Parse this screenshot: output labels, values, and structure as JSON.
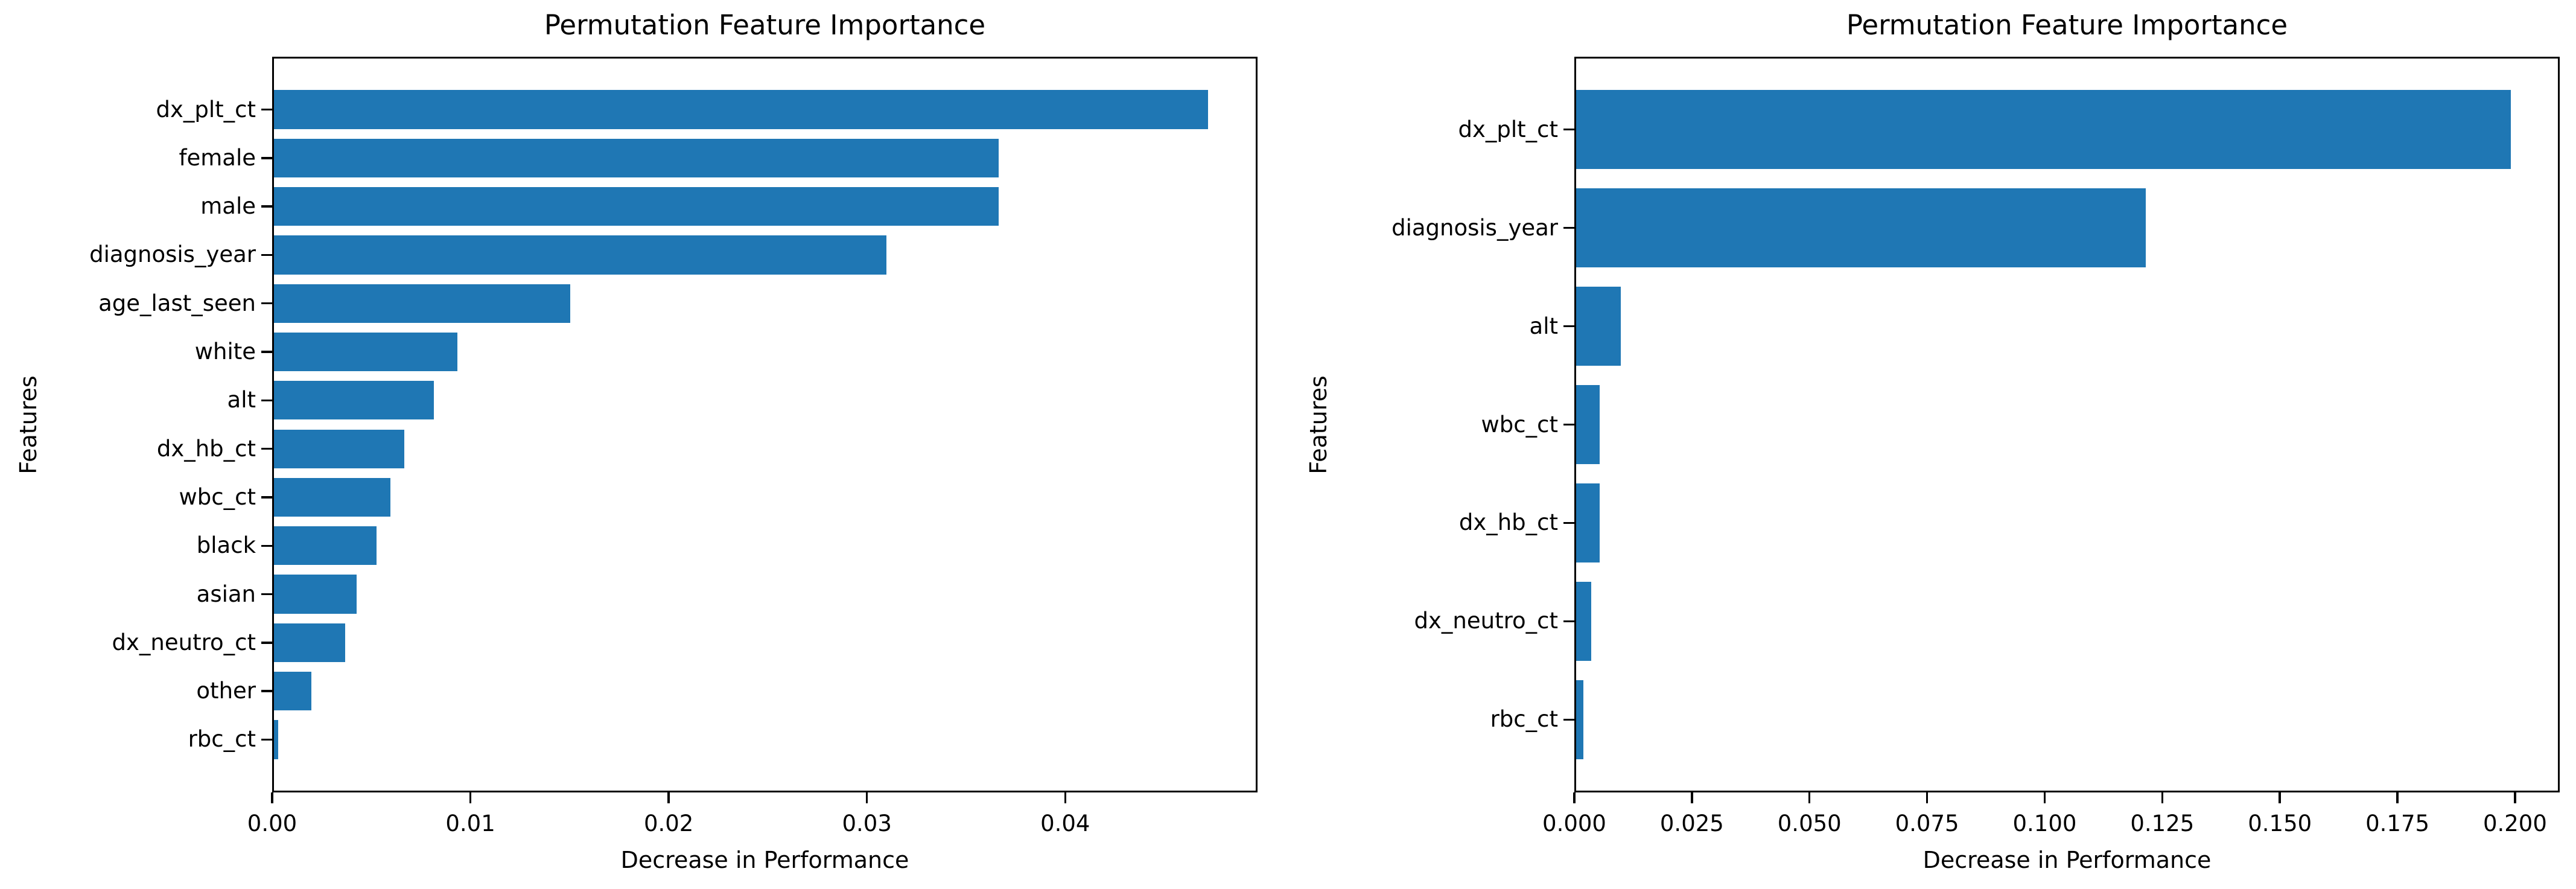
{
  "figure": {
    "background": "#ffffff",
    "text_color": "#000000"
  },
  "chart_data": [
    {
      "type": "bar",
      "orientation": "horizontal",
      "title": "Permutation Feature Importance",
      "xlabel": "Decrease in Performance",
      "ylabel": "Features",
      "bar_color": "#1f77b4",
      "axis_color": "#000000",
      "grid": false,
      "legend": false,
      "categories": [
        "dx_plt_ct",
        "female",
        "male",
        "diagnosis_year",
        "age_last_seen",
        "white",
        "alt",
        "dx_hb_ct",
        "wbc_ct",
        "black",
        "asian",
        "dx_neutro_ct",
        "other",
        "rbc_ct"
      ],
      "values": [
        0.0473,
        0.0367,
        0.0367,
        0.031,
        0.015,
        0.0093,
        0.0081,
        0.0066,
        0.0059,
        0.0052,
        0.0042,
        0.0036,
        0.0019,
        0.0002
      ],
      "xlim": [
        0,
        0.0497
      ],
      "xticks": [
        0,
        0.01,
        0.02,
        0.03,
        0.04
      ],
      "xtick_labels": [
        "0.00",
        "0.01",
        "0.02",
        "0.03",
        "0.04"
      ]
    },
    {
      "type": "bar",
      "orientation": "horizontal",
      "title": "Permutation Feature Importance",
      "xlabel": "Decrease in Performance",
      "ylabel": "Features",
      "bar_color": "#1f77b4",
      "axis_color": "#000000",
      "grid": false,
      "legend": false,
      "categories": [
        "dx_plt_ct",
        "diagnosis_year",
        "alt",
        "wbc_ct",
        "dx_hb_ct",
        "dx_neutro_ct",
        "rbc_ct"
      ],
      "values": [
        0.1995,
        0.1215,
        0.0095,
        0.005,
        0.005,
        0.0032,
        0.0015
      ],
      "xlim": [
        0,
        0.2095
      ],
      "xticks": [
        0,
        0.025,
        0.05,
        0.075,
        0.1,
        0.125,
        0.15,
        0.175,
        0.2
      ],
      "xtick_labels": [
        "0.000",
        "0.025",
        "0.050",
        "0.075",
        "0.100",
        "0.125",
        "0.150",
        "0.175",
        "0.200"
      ]
    }
  ]
}
